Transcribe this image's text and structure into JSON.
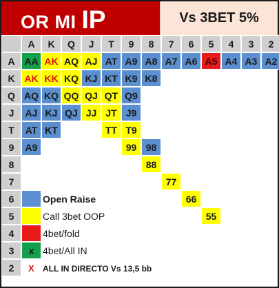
{
  "title": {
    "main": "OR MI",
    "sub": "IP"
  },
  "vs_label": "Vs 3BET 5%",
  "ranks": [
    "A",
    "K",
    "Q",
    "J",
    "T",
    "9",
    "8",
    "7",
    "6",
    "5",
    "4",
    "3",
    "2"
  ],
  "colors": {
    "raise": "#5b8fd0",
    "call": "#ffff00",
    "fourbet": "#e81a1a",
    "allin": "#12a14a",
    "header": "#d0cece",
    "title_bg": "#c00000",
    "vs_bg": "#fce4d6"
  },
  "hands": [
    {
      "label": "AA",
      "row": 0,
      "col": 0,
      "cls": "c-allin"
    },
    {
      "label": "AK",
      "row": 0,
      "col": 1,
      "cls": "c-call-red"
    },
    {
      "label": "AQ",
      "row": 0,
      "col": 2,
      "cls": "c-call"
    },
    {
      "label": "AJ",
      "row": 0,
      "col": 3,
      "cls": "c-call"
    },
    {
      "label": "AT",
      "row": 0,
      "col": 4,
      "cls": "c-raise"
    },
    {
      "label": "A9",
      "row": 0,
      "col": 5,
      "cls": "c-raise"
    },
    {
      "label": "A8",
      "row": 0,
      "col": 6,
      "cls": "c-raise"
    },
    {
      "label": "A7",
      "row": 0,
      "col": 7,
      "cls": "c-raise"
    },
    {
      "label": "A6",
      "row": 0,
      "col": 8,
      "cls": "c-raise"
    },
    {
      "label": "A5",
      "row": 0,
      "col": 9,
      "cls": "c-4bet"
    },
    {
      "label": "A4",
      "row": 0,
      "col": 10,
      "cls": "c-raise"
    },
    {
      "label": "A3",
      "row": 0,
      "col": 11,
      "cls": "c-raise"
    },
    {
      "label": "A2",
      "row": 0,
      "col": 12,
      "cls": "c-raise"
    },
    {
      "label": "AK",
      "row": 1,
      "col": 0,
      "cls": "c-call-red"
    },
    {
      "label": "KK",
      "row": 1,
      "col": 1,
      "cls": "c-call-red"
    },
    {
      "label": "KQ",
      "row": 1,
      "col": 2,
      "cls": "c-call"
    },
    {
      "label": "KJ",
      "row": 1,
      "col": 3,
      "cls": "c-raise"
    },
    {
      "label": "KT",
      "row": 1,
      "col": 4,
      "cls": "c-raise"
    },
    {
      "label": "K9",
      "row": 1,
      "col": 5,
      "cls": "c-raise"
    },
    {
      "label": "K8",
      "row": 1,
      "col": 6,
      "cls": "c-raise"
    },
    {
      "label": "AQ",
      "row": 2,
      "col": 0,
      "cls": "c-raise"
    },
    {
      "label": "KQ",
      "row": 2,
      "col": 1,
      "cls": "c-raise"
    },
    {
      "label": "QQ",
      "row": 2,
      "col": 2,
      "cls": "c-call"
    },
    {
      "label": "QJ",
      "row": 2,
      "col": 3,
      "cls": "c-call"
    },
    {
      "label": "QT",
      "row": 2,
      "col": 4,
      "cls": "c-call"
    },
    {
      "label": "Q9",
      "row": 2,
      "col": 5,
      "cls": "c-raise"
    },
    {
      "label": "AJ",
      "row": 3,
      "col": 0,
      "cls": "c-raise"
    },
    {
      "label": "KJ",
      "row": 3,
      "col": 1,
      "cls": "c-raise"
    },
    {
      "label": "QJ",
      "row": 3,
      "col": 2,
      "cls": "c-raise"
    },
    {
      "label": "JJ",
      "row": 3,
      "col": 3,
      "cls": "c-call"
    },
    {
      "label": "JT",
      "row": 3,
      "col": 4,
      "cls": "c-call"
    },
    {
      "label": "J9",
      "row": 3,
      "col": 5,
      "cls": "c-raise"
    },
    {
      "label": "AT",
      "row": 4,
      "col": 0,
      "cls": "c-raise"
    },
    {
      "label": "KT",
      "row": 4,
      "col": 1,
      "cls": "c-raise"
    },
    {
      "label": "TT",
      "row": 4,
      "col": 4,
      "cls": "c-call"
    },
    {
      "label": "T9",
      "row": 4,
      "col": 5,
      "cls": "c-call"
    },
    {
      "label": "A9",
      "row": 5,
      "col": 0,
      "cls": "c-raise"
    },
    {
      "label": "99",
      "row": 5,
      "col": 5,
      "cls": "c-call"
    },
    {
      "label": "98",
      "row": 5,
      "col": 6,
      "cls": "c-raise"
    },
    {
      "label": "88",
      "row": 6,
      "col": 6,
      "cls": "c-call"
    },
    {
      "label": "77",
      "row": 7,
      "col": 7,
      "cls": "c-call"
    },
    {
      "label": "66",
      "row": 8,
      "col": 8,
      "cls": "c-call"
    },
    {
      "label": "55",
      "row": 9,
      "col": 9,
      "cls": "c-call"
    }
  ],
  "legend": [
    {
      "label": "Open Raise",
      "cls": "c-raise",
      "bold": true,
      "row": 8
    },
    {
      "label": "Call 3bet OOP",
      "cls": "c-call",
      "bold": false,
      "row": 9
    },
    {
      "label": "4bet/fold",
      "cls": "c-4bet",
      "bold": false,
      "row": 10
    },
    {
      "label": "4bet/All IN",
      "cls": "c-allin",
      "bold": false,
      "row": 11,
      "mark": "x"
    }
  ],
  "direct_mark": "X",
  "direct_label": "ALL IN DIRECTO Vs 13,5 bb"
}
